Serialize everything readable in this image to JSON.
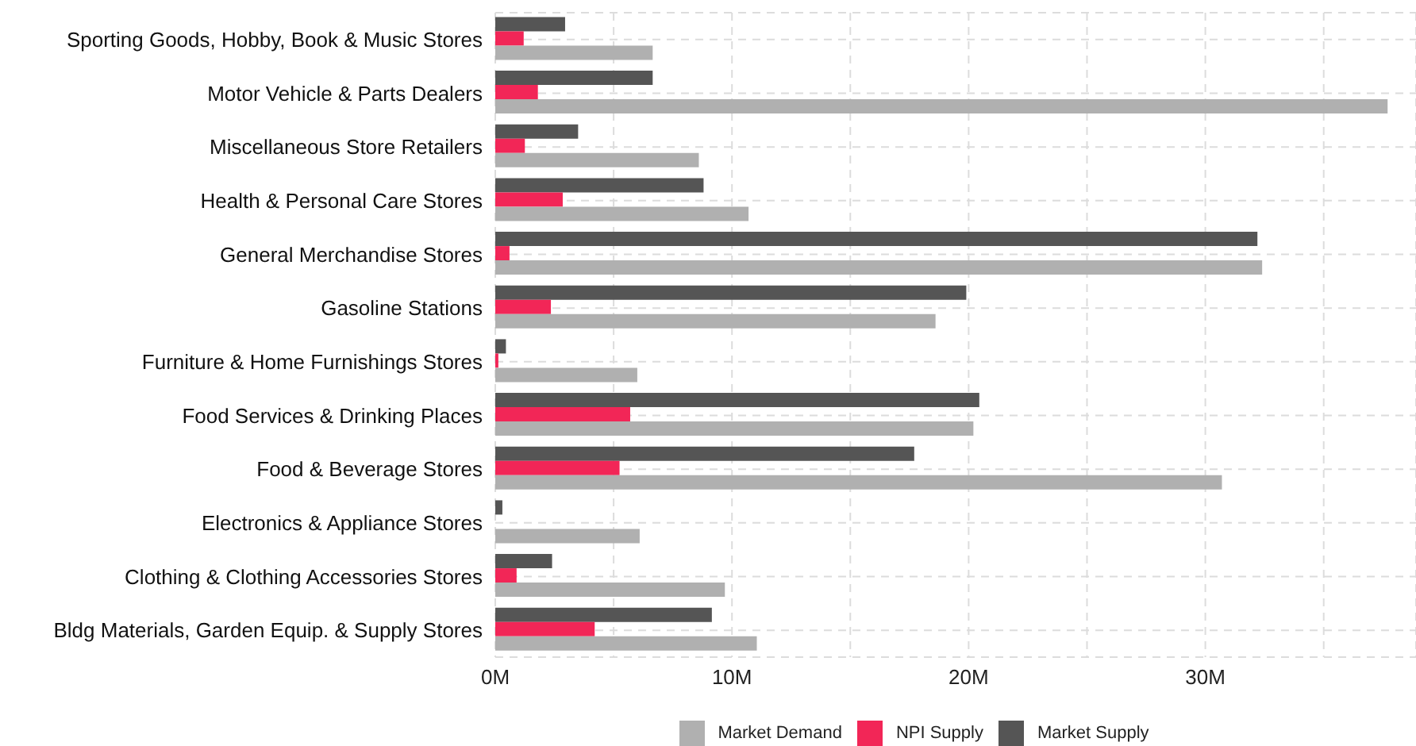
{
  "chart_data": {
    "type": "bar",
    "orientation": "horizontal",
    "categories": [
      "Sporting Goods, Hobby, Book & Music Stores",
      "Motor Vehicle & Parts Dealers",
      "Miscellaneous Store Retailers",
      "Health & Personal Care Stores",
      "General Merchandise Stores",
      "Gasoline Stations",
      "Furniture & Home Furnishings Stores",
      "Food Services & Drinking Places",
      "Food & Beverage Stores",
      "Electronics & Appliance Stores",
      "Clothing & Clothing Accessories Stores",
      "Bldg Materials, Garden Equip. & Supply Stores"
    ],
    "series": [
      {
        "name": "Market Demand",
        "color": "#b0b0b0",
        "values": [
          6.65,
          37.7,
          8.6,
          10.7,
          32.4,
          18.6,
          6.0,
          20.2,
          30.7,
          6.1,
          9.7,
          11.05
        ]
      },
      {
        "name": "NPI Supply",
        "color": "#f22657",
        "values": [
          1.2,
          1.8,
          1.25,
          2.85,
          0.6,
          2.35,
          0.13,
          5.7,
          5.25,
          0,
          0.9,
          4.2
        ]
      },
      {
        "name": "Market Supply",
        "color": "#555555",
        "values": [
          2.95,
          6.65,
          3.5,
          8.8,
          32.2,
          19.9,
          0.45,
          20.45,
          17.7,
          0.3,
          2.4,
          9.15
        ]
      }
    ],
    "xlim": [
      0,
      38.9
    ],
    "xticks": [
      {
        "value": 0,
        "label": "0M"
      },
      {
        "value": 5,
        "label": null
      },
      {
        "value": 10,
        "label": "10M"
      },
      {
        "value": 15,
        "label": null
      },
      {
        "value": 20,
        "label": "20M"
      },
      {
        "value": 25,
        "label": null
      },
      {
        "value": 30,
        "label": "30M"
      },
      {
        "value": 35,
        "label": null
      }
    ],
    "grid": true,
    "legend": "bottom"
  }
}
